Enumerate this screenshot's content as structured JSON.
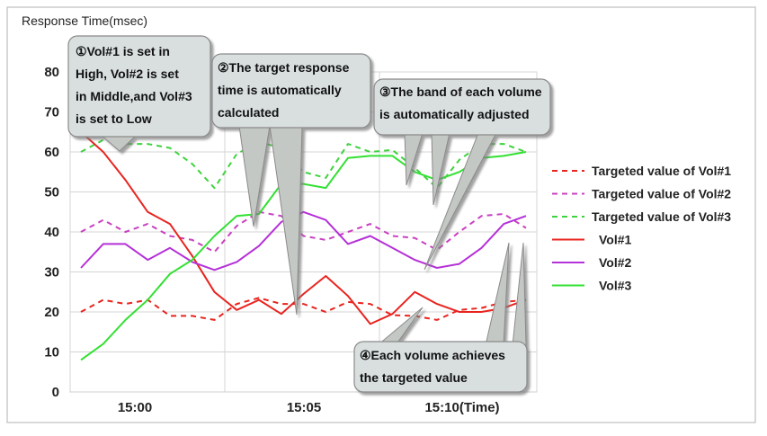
{
  "chart_data": {
    "type": "line",
    "ylabel": "Response Time(msec)",
    "ylim": [
      0,
      80
    ],
    "yticks": [
      0,
      10,
      20,
      30,
      40,
      50,
      60,
      70,
      80
    ],
    "xlabels": [
      "15:00",
      "15:05",
      "15:10(Time)"
    ],
    "grid": true,
    "legend_position": "right",
    "x": [
      0,
      1,
      2,
      3,
      4,
      5,
      6,
      7,
      8,
      9,
      10,
      11,
      12,
      13,
      14,
      15,
      16,
      17,
      18,
      19,
      20
    ],
    "series": [
      {
        "name": "Targeted value of Vol#1",
        "style": "dashed",
        "color": "#e8241f",
        "values": [
          20,
          23,
          22,
          23,
          19,
          19,
          18,
          22,
          23.5,
          22,
          22,
          20,
          22.5,
          22,
          19.2,
          19,
          18,
          20.5,
          21,
          22.5,
          23
        ]
      },
      {
        "name": "Targeted value of Vol#2",
        "style": "dashed",
        "color": "#c940c0",
        "values": [
          40,
          43,
          40,
          42,
          39,
          38,
          35,
          41.5,
          45,
          44,
          39,
          38,
          40,
          42,
          39,
          38.5,
          35.5,
          40,
          44,
          44.5,
          41
        ]
      },
      {
        "name": "Targeted value of Vol#3",
        "style": "dashed",
        "color": "#3fd23f",
        "values": [
          60,
          63,
          62,
          62,
          61,
          57,
          51,
          59.5,
          62.5,
          61,
          55,
          53.5,
          62,
          60,
          60.5,
          56,
          51,
          58,
          62,
          62,
          60
        ]
      },
      {
        "name": "Vol#1",
        "style": "solid",
        "color": "#e8241f",
        "values": [
          65,
          60,
          53,
          45,
          42,
          34,
          25,
          20.5,
          23,
          19.5,
          24.5,
          29,
          24,
          17,
          19.5,
          25,
          22,
          20,
          20,
          21,
          23
        ]
      },
      {
        "name": "Vol#2",
        "style": "solid",
        "color": "#b530d8",
        "values": [
          31,
          37,
          37,
          33,
          36,
          32.5,
          30.5,
          32.5,
          36.5,
          42.5,
          45,
          43,
          37,
          39,
          36,
          33,
          31,
          32,
          36,
          42,
          44
        ]
      },
      {
        "name": "Vol#3",
        "style": "solid",
        "color": "#33e033",
        "values": [
          8,
          12,
          18,
          23,
          29.5,
          33,
          39,
          44,
          44.5,
          52,
          52,
          51,
          58.5,
          59,
          59,
          55,
          53,
          55,
          58.5,
          59,
          60
        ]
      }
    ],
    "annotations": [
      {
        "lines": [
          "①Vol#1 is set in",
          "High, Vol#2 is set",
          "in Middle,and Vol#3",
          "is set to Low"
        ]
      },
      {
        "lines": [
          "②The target response",
          "time is automatically",
          "calculated"
        ]
      },
      {
        "lines": [
          "③The band of each volume",
          "is automatically adjusted"
        ]
      },
      {
        "lines": [
          "④Each volume achieves",
          "the targeted value"
        ]
      }
    ]
  }
}
